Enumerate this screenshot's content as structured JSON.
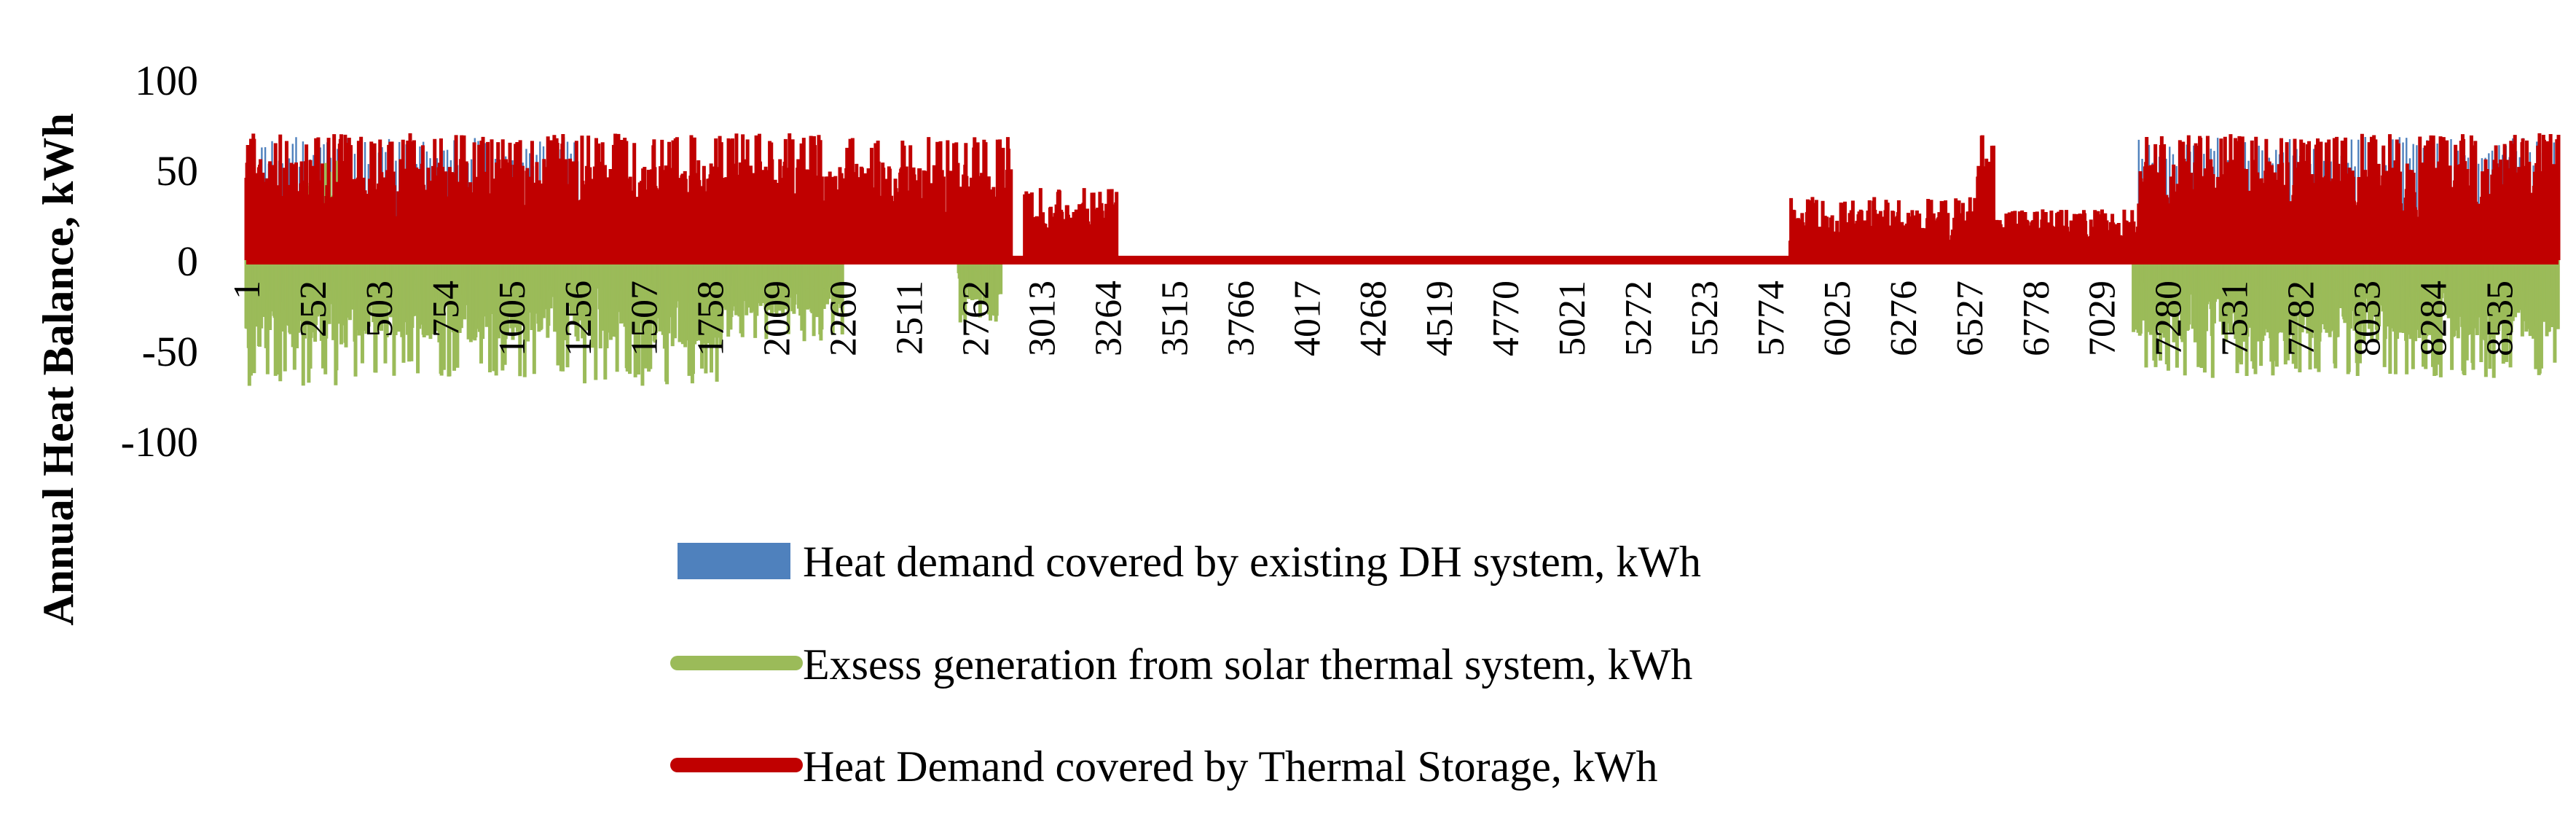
{
  "chart_data": {
    "type": "bar",
    "title": "",
    "xlabel": "",
    "ylabel": "Annual Heat Balance, kWh",
    "ylim": [
      -100,
      100
    ],
    "yticks": [
      "100",
      "50",
      "0",
      "-50",
      "-100"
    ],
    "x_range": [
      1,
      8760
    ],
    "x_tick_labels": [
      "1",
      "252",
      "503",
      "754",
      "1005",
      "1256",
      "1507",
      "1758",
      "2009",
      "2260",
      "2511",
      "2762",
      "3013",
      "3264",
      "3515",
      "3766",
      "4017",
      "4268",
      "4519",
      "4770",
      "5021",
      "5272",
      "5523",
      "5774",
      "6025",
      "6276",
      "6527",
      "6778",
      "7029",
      "7280",
      "7531",
      "7782",
      "8033",
      "8284",
      "8535"
    ],
    "legend_position": "bottom",
    "series": [
      {
        "name": "Heat demand covered by existing DH system, kWh",
        "color": "#4f81bd",
        "style": "bar",
        "segments": [
          {
            "start": 60,
            "end": 230,
            "max": 68
          },
          {
            "start": 230,
            "end": 1260,
            "max": 68
          },
          {
            "start": 7170,
            "end": 8760,
            "max": 68
          }
        ]
      },
      {
        "name": "Exsess generation from solar thermal system, kWh",
        "color": "#9bbb59",
        "style": "line",
        "segments": [
          {
            "start": 1,
            "end": 420,
            "min": -70
          },
          {
            "start": 240,
            "end": 400,
            "max": 55
          },
          {
            "start": 420,
            "end": 1280,
            "min": -65
          },
          {
            "start": 1280,
            "end": 1800,
            "min": -70
          },
          {
            "start": 1800,
            "end": 2260,
            "min": -45
          },
          {
            "start": 2700,
            "end": 2860,
            "min": -35
          },
          {
            "start": 7150,
            "end": 8760,
            "min": -65
          }
        ]
      },
      {
        "name": "Heat Demand covered by Thermal Storage, kWh",
        "color": "#c00000",
        "style": "line",
        "segments": [
          {
            "start": 1,
            "end": 2250,
            "max": 70
          },
          {
            "start": 2250,
            "end": 2900,
            "max": 68
          },
          {
            "start": 2950,
            "end": 3300,
            "max": 40
          },
          {
            "start": 3300,
            "end": 5850,
            "max": 0
          },
          {
            "start": 5850,
            "end": 6560,
            "max": 35
          },
          {
            "start": 6560,
            "end": 6620,
            "max": 70
          },
          {
            "start": 6620,
            "end": 7170,
            "max": 28
          },
          {
            "start": 7170,
            "end": 8760,
            "max": 70
          }
        ]
      }
    ]
  }
}
